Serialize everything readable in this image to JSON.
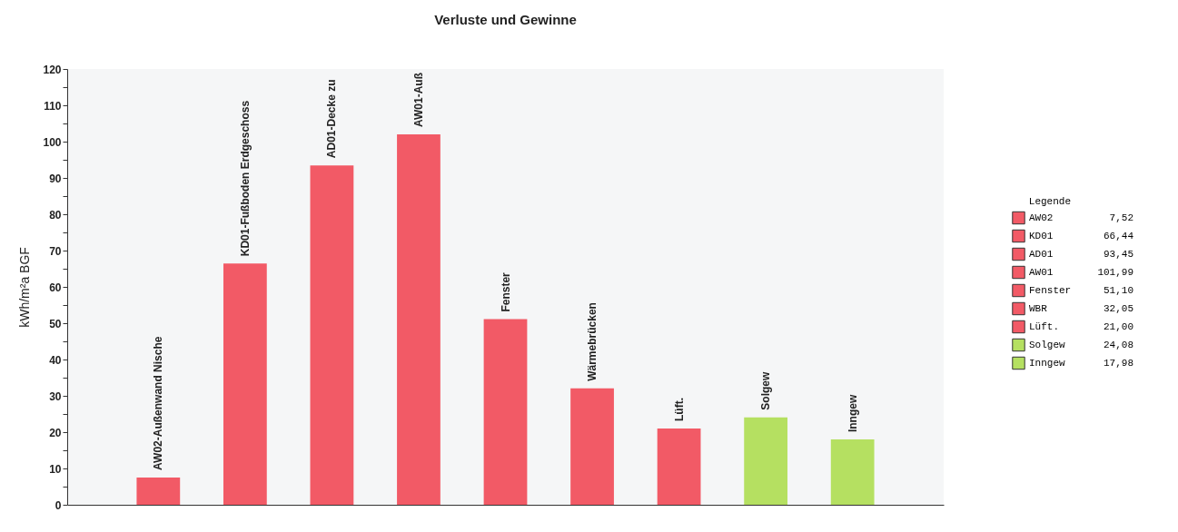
{
  "chart_data": {
    "type": "bar",
    "title": "Verluste und Gewinne",
    "ylabel": "kWh/m²a BGF",
    "legend_title": "Legende",
    "categories": [
      "AW02-Außenwand Nische",
      "KD01-Fußboden Erdgeschoss",
      "AD01-Decke zu",
      "AW01-Auß",
      "Fenster",
      "Wärmebrücken",
      "Lüft.",
      "Solgew",
      "Inngew"
    ],
    "series": [
      {
        "name": "AW02",
        "color": "#f25a66",
        "values": [
          7.52,
          null,
          null,
          null,
          null,
          null,
          null,
          null,
          null
        ]
      },
      {
        "name": "KD01",
        "color": "#f25a66",
        "values": [
          null,
          66.44,
          null,
          null,
          null,
          null,
          null,
          null,
          null
        ]
      },
      {
        "name": "AD01",
        "color": "#f25a66",
        "values": [
          null,
          null,
          93.45,
          null,
          null,
          null,
          null,
          null,
          null
        ]
      },
      {
        "name": "AW01",
        "color": "#f25a66",
        "values": [
          null,
          null,
          null,
          101.99,
          null,
          null,
          null,
          null,
          null
        ]
      },
      {
        "name": "Fenster",
        "color": "#f25a66",
        "values": [
          null,
          null,
          null,
          null,
          51.1,
          null,
          null,
          null,
          null
        ]
      },
      {
        "name": "WBR",
        "color": "#f25a66",
        "values": [
          null,
          null,
          null,
          null,
          null,
          32.05,
          null,
          null,
          null
        ]
      },
      {
        "name": "Lüft.",
        "color": "#f25a66",
        "values": [
          null,
          null,
          null,
          null,
          null,
          null,
          21.0,
          null,
          null
        ]
      },
      {
        "name": "Solgew",
        "color": "#b5e061",
        "values": [
          null,
          null,
          null,
          null,
          null,
          null,
          null,
          24.08,
          null
        ]
      },
      {
        "name": "Inngew",
        "color": "#b5e061",
        "values": [
          null,
          null,
          null,
          null,
          null,
          null,
          null,
          null,
          17.98
        ]
      }
    ],
    "ylim": [
      0,
      120
    ],
    "yticks": [
      0,
      {
        "value": 5,
        "label": null
      },
      10,
      {
        "value": 15,
        "label": null
      },
      20,
      {
        "value": 25,
        "label": null
      },
      30,
      {
        "value": 35,
        "label": null
      },
      40,
      {
        "value": 45,
        "label": null
      },
      50,
      {
        "value": 55,
        "label": null
      },
      60,
      {
        "value": 65,
        "label": null
      },
      70,
      {
        "value": 75,
        "label": null
      },
      80,
      {
        "value": 85,
        "label": null
      },
      90,
      {
        "value": 95,
        "label": null
      },
      100,
      {
        "value": 105,
        "label": null
      },
      110,
      {
        "value": 115,
        "label": null
      },
      120
    ],
    "legend": "right",
    "annotations": [
      "7,52",
      "66,44",
      "93,45",
      "101,99",
      "51,10",
      "32,05",
      "21,00",
      "24,08",
      "17,98"
    ]
  }
}
